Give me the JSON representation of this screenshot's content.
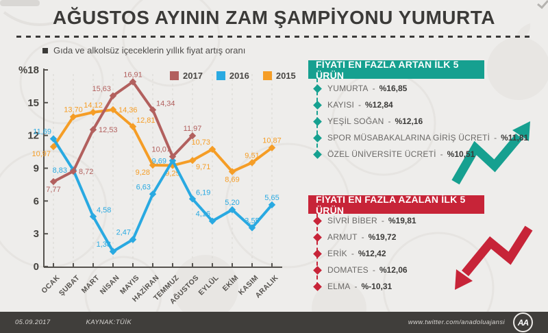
{
  "header": {
    "title": "AĞUSTOS AYININ ZAM ŞAMPİYONU YUMURTA",
    "subtitle": "Gıda ve alkolsüz içeceklerin yıllık fiyat artış oranı"
  },
  "chart_data": {
    "type": "line",
    "title": "Gıda ve alkolsüz içeceklerin yıllık fiyat artış oranı",
    "categories": [
      "OCAK",
      "ŞUBAT",
      "MART",
      "NİSAN",
      "MAYIS",
      "HAZİRAN",
      "TEMMUZ",
      "AĞUSTOS",
      "EYLÜL",
      "EKİM",
      "KASIM",
      "ARALIK"
    ],
    "series": [
      {
        "name": "2017",
        "color": "#b2605e",
        "values": [
          7.77,
          8.72,
          12.53,
          15.63,
          16.91,
          14.34,
          10.07,
          11.97
        ],
        "label_pos": [
          "below",
          "right",
          "right",
          "above-left",
          "above",
          "above-right",
          "above-left",
          "above"
        ]
      },
      {
        "name": "2016",
        "color": "#29a9e1",
        "values": [
          11.69,
          8.83,
          4.58,
          1.38,
          2.47,
          6.63,
          9.69,
          6.19,
          4.16,
          5.2,
          3.55,
          5.65
        ],
        "label_pos": [
          "above-left",
          "left",
          "above-right",
          "above-left",
          "above-left",
          "above-left",
          "left",
          "above-right",
          "above-left",
          "above",
          "above",
          "above"
        ]
      },
      {
        "name": "2015",
        "color": "#f59d26",
        "values": [
          10.97,
          13.7,
          14.12,
          14.36,
          12.81,
          9.28,
          9.25,
          9.71,
          10.73,
          8.69,
          9.51,
          10.87
        ],
        "label_pos": [
          "below-left",
          "above",
          "above",
          "right",
          "above-right",
          "below-left",
          "below",
          "below-right",
          "above-left",
          "below",
          "above",
          "above"
        ]
      }
    ],
    "ylim": [
      0,
      18
    ],
    "yticks": [
      0,
      3,
      6,
      9,
      12,
      15,
      18
    ],
    "ytick_labels": [
      "0",
      "3",
      "6",
      "9",
      "12",
      "15",
      "%18"
    ],
    "grid": "vertical-dashed",
    "legend_position": "top-center",
    "decimal_separator": ","
  },
  "panels": {
    "separator": "-",
    "gainers": {
      "title": "FİYATI EN FAZLA ARTAN İLK 5 ÜRÜN",
      "accent": "#16a090",
      "items": [
        {
          "label": "YUMURTA",
          "value": "%16,85"
        },
        {
          "label": "KAYISI",
          "value": "%12,84"
        },
        {
          "label": "YEŞİL SOĞAN",
          "value": "%12,16"
        },
        {
          "label": "SPOR MÜSABAKALARINA GİRİŞ ÜCRETİ",
          "value": "%11,81"
        },
        {
          "label": "ÖZEL ÜNİVERSİTE ÜCRETİ",
          "value": "%10,51"
        }
      ]
    },
    "losers": {
      "title": "FİYATI EN FAZLA AZALAN İLK 5 ÜRÜN",
      "accent": "#c72438",
      "items": [
        {
          "label": "SİVRİ BİBER",
          "value": "%19,81"
        },
        {
          "label": "ARMUT",
          "value": "%19,72"
        },
        {
          "label": "ERİK",
          "value": "%12,42"
        },
        {
          "label": "DOMATES",
          "value": "%12,06"
        },
        {
          "label": "ELMA",
          "value": "%-10,31"
        }
      ]
    }
  },
  "footer": {
    "date": "05.09.2017",
    "source": "KAYNAK:TÜİK",
    "twitter": "www.twitter.com/anadoluajansi",
    "logo": "AA"
  }
}
